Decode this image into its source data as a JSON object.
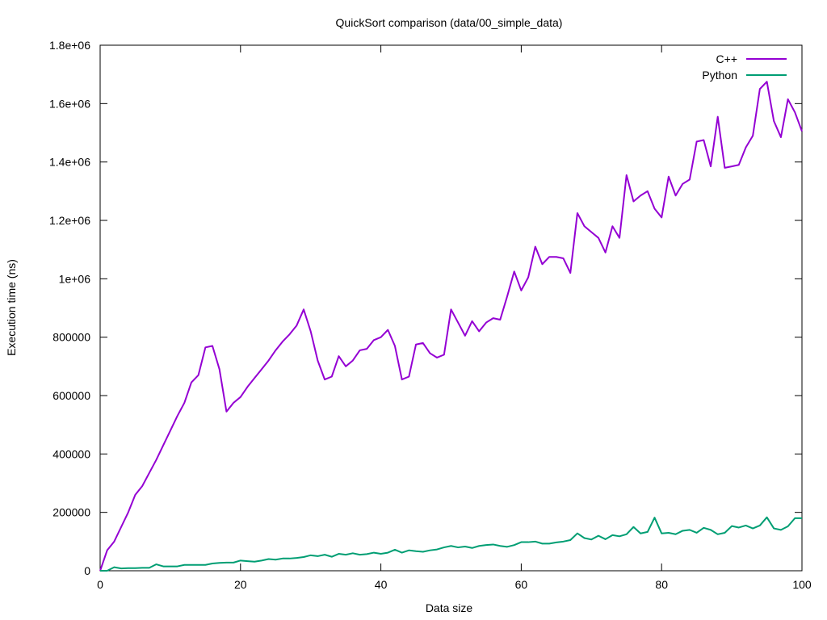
{
  "chart_data": {
    "type": "line",
    "title": "QuickSort comparison (data/00_simple_data)",
    "xlabel": "Data size",
    "ylabel": "Execution time (ns)",
    "xlim": [
      0,
      100
    ],
    "ylim": [
      0,
      1800000
    ],
    "x_ticks": [
      0,
      20,
      40,
      60,
      80,
      100
    ],
    "x_tick_labels": [
      "0",
      "20",
      "40",
      "60",
      "80",
      "100"
    ],
    "y_ticks": [
      0,
      200000,
      400000,
      600000,
      800000,
      1000000,
      1200000,
      1400000,
      1600000,
      1800000
    ],
    "y_tick_labels": [
      "0",
      "200000",
      "400000",
      "600000",
      "800000",
      "1e+06",
      "1.2e+06",
      "1.4e+06",
      "1.6e+06",
      "1.8e+06"
    ],
    "grid": false,
    "legend_position": "top-right",
    "x": [
      0,
      1,
      2,
      3,
      4,
      5,
      6,
      7,
      8,
      9,
      10,
      11,
      12,
      13,
      14,
      15,
      16,
      17,
      18,
      19,
      20,
      21,
      22,
      23,
      24,
      25,
      26,
      27,
      28,
      29,
      30,
      31,
      32,
      33,
      34,
      35,
      36,
      37,
      38,
      39,
      40,
      41,
      42,
      43,
      44,
      45,
      46,
      47,
      48,
      49,
      50,
      51,
      52,
      53,
      54,
      55,
      56,
      57,
      58,
      59,
      60,
      61,
      62,
      63,
      64,
      65,
      66,
      67,
      68,
      69,
      70,
      71,
      72,
      73,
      74,
      75,
      76,
      77,
      78,
      79,
      80,
      81,
      82,
      83,
      84,
      85,
      86,
      87,
      88,
      89,
      90,
      91,
      92,
      93,
      94,
      95,
      96,
      97,
      98,
      99,
      100
    ],
    "series": [
      {
        "name": "C++",
        "color": "#9400d3",
        "values": [
          0,
          70000,
          100000,
          150000,
          200000,
          260000,
          290000,
          335000,
          380000,
          430000,
          480000,
          530000,
          575000,
          645000,
          670000,
          765000,
          770000,
          690000,
          545000,
          575000,
          595000,
          630000,
          660000,
          690000,
          720000,
          755000,
          785000,
          810000,
          840000,
          895000,
          820000,
          720000,
          655000,
          665000,
          735000,
          700000,
          720000,
          755000,
          760000,
          790000,
          800000,
          825000,
          770000,
          655000,
          665000,
          775000,
          780000,
          745000,
          730000,
          740000,
          895000,
          850000,
          805000,
          855000,
          820000,
          850000,
          865000,
          860000,
          940000,
          1025000,
          960000,
          1005000,
          1110000,
          1050000,
          1075000,
          1075000,
          1070000,
          1020000,
          1225000,
          1180000,
          1160000,
          1140000,
          1090000,
          1180000,
          1140000,
          1355000,
          1265000,
          1285000,
          1300000,
          1240000,
          1210000,
          1350000,
          1285000,
          1325000,
          1340000,
          1470000,
          1475000,
          1385000,
          1555000,
          1380000,
          1385000,
          1390000,
          1450000,
          1490000,
          1650000,
          1675000,
          1540000,
          1485000,
          1615000,
          1570000,
          1505000
        ]
      },
      {
        "name": "Python",
        "color": "#009e73",
        "values": [
          0,
          0,
          12000,
          8000,
          9000,
          9000,
          10000,
          10000,
          22000,
          15000,
          15000,
          15000,
          20000,
          20000,
          20000,
          20000,
          25000,
          27000,
          28000,
          28000,
          35000,
          33000,
          31000,
          35000,
          40000,
          38000,
          42000,
          42000,
          44000,
          47000,
          53000,
          50000,
          55000,
          48000,
          58000,
          55000,
          60000,
          55000,
          57000,
          62000,
          58000,
          62000,
          72000,
          62000,
          70000,
          67000,
          65000,
          70000,
          73000,
          80000,
          85000,
          80000,
          83000,
          78000,
          85000,
          88000,
          90000,
          85000,
          82000,
          88000,
          98000,
          98000,
          100000,
          93000,
          93000,
          97000,
          100000,
          105000,
          128000,
          112000,
          107000,
          120000,
          108000,
          122000,
          118000,
          125000,
          150000,
          128000,
          133000,
          182000,
          128000,
          130000,
          125000,
          137000,
          140000,
          130000,
          147000,
          140000,
          125000,
          130000,
          153000,
          148000,
          155000,
          145000,
          155000,
          183000,
          145000,
          140000,
          152000,
          180000,
          180000
        ]
      }
    ]
  }
}
